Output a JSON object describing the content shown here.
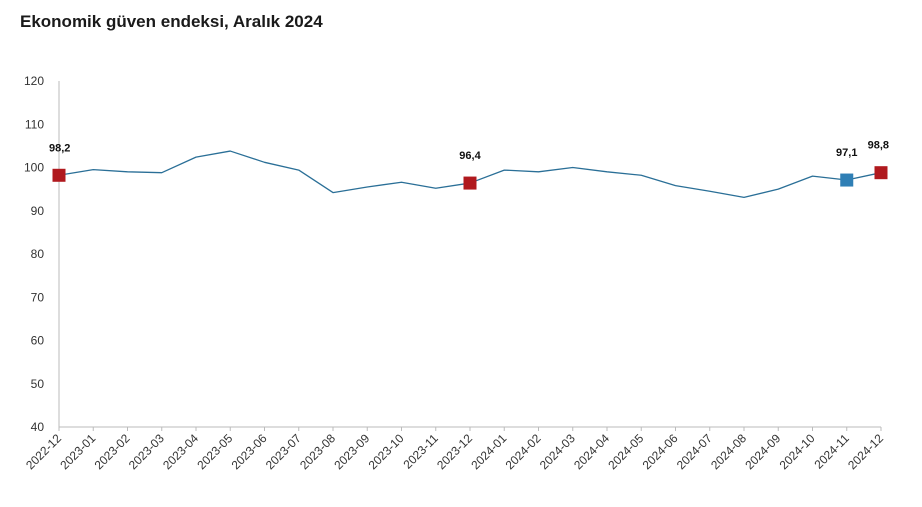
{
  "chart_data": {
    "type": "line",
    "title": "Ekonomik güven endeksi, Aralık 2024",
    "xlabel": "",
    "ylabel": "",
    "ylim": [
      40,
      120
    ],
    "yticks": [
      40,
      50,
      60,
      70,
      80,
      90,
      100,
      110,
      120
    ],
    "grid": false,
    "legend": "none",
    "colors": {
      "line": "#2a6f97",
      "marker_highlight": "#b0191e",
      "marker_alt": "#2f7fb5",
      "axis": "#bbbbbb"
    },
    "categories": [
      "2022-12",
      "2023-01",
      "2023-02",
      "2023-03",
      "2023-04",
      "2023-05",
      "2023-06",
      "2023-07",
      "2023-08",
      "2023-09",
      "2023-10",
      "2023-11",
      "2023-12",
      "2024-01",
      "2024-02",
      "2024-03",
      "2024-04",
      "2024-05",
      "2024-06",
      "2024-07",
      "2024-08",
      "2024-09",
      "2024-10",
      "2024-11",
      "2024-12"
    ],
    "series": [
      {
        "values": [
          98.2,
          99.5,
          99.0,
          98.8,
          102.4,
          103.8,
          101.2,
          99.4,
          94.2,
          95.5,
          96.6,
          95.2,
          96.4,
          99.4,
          99.0,
          100.0,
          99.0,
          98.2,
          95.8,
          94.5,
          93.1,
          95.0,
          98.0,
          97.1,
          98.8
        ]
      }
    ],
    "markers": [
      {
        "index": 0,
        "label": "98,2",
        "color": "#b0191e"
      },
      {
        "index": 12,
        "label": "96,4",
        "color": "#b0191e"
      },
      {
        "index": 23,
        "label": "97,1",
        "color": "#2f7fb5"
      },
      {
        "index": 24,
        "label": "98,8",
        "color": "#b0191e"
      }
    ]
  }
}
